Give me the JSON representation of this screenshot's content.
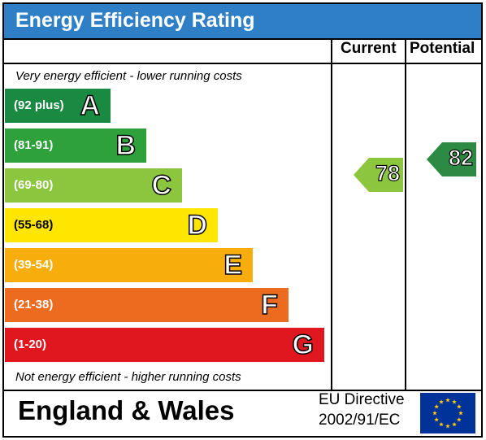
{
  "header": {
    "title": "Energy Efficiency Rating"
  },
  "columns": {
    "current": "Current",
    "potential": "Potential"
  },
  "notes": {
    "top": "Very energy efficient - lower running costs",
    "bottom": "Not energy efficient - higher running costs"
  },
  "bands": [
    {
      "range": "(92 plus)",
      "letter": "A",
      "color": "#1a8a43",
      "text_color": "#ffffff"
    },
    {
      "range": "(81-91)",
      "letter": "B",
      "color": "#2fa13a",
      "text_color": "#ffffff"
    },
    {
      "range": "(69-80)",
      "letter": "C",
      "color": "#8cc63f",
      "text_color": "#ffffff"
    },
    {
      "range": "(55-68)",
      "letter": "D",
      "color": "#ffe600",
      "text_color": "#000000"
    },
    {
      "range": "(39-54)",
      "letter": "E",
      "color": "#f7ae0d",
      "text_color": "#ffffff"
    },
    {
      "range": "(21-38)",
      "letter": "F",
      "color": "#ec6b1f",
      "text_color": "#ffffff"
    },
    {
      "range": "(1-20)",
      "letter": "G",
      "color": "#e0171f",
      "text_color": "#ffffff"
    }
  ],
  "ratings": {
    "current": {
      "value": "78",
      "color": "#8cc63f"
    },
    "potential": {
      "value": "82",
      "color": "#2d8a45"
    }
  },
  "footer": {
    "region": "England & Wales",
    "directive_line1": "EU Directive",
    "directive_line2": "2002/91/EC",
    "flag_icon": "eu-flag-icon",
    "flag_color": "#003399",
    "star_color": "#ffcc00"
  }
}
